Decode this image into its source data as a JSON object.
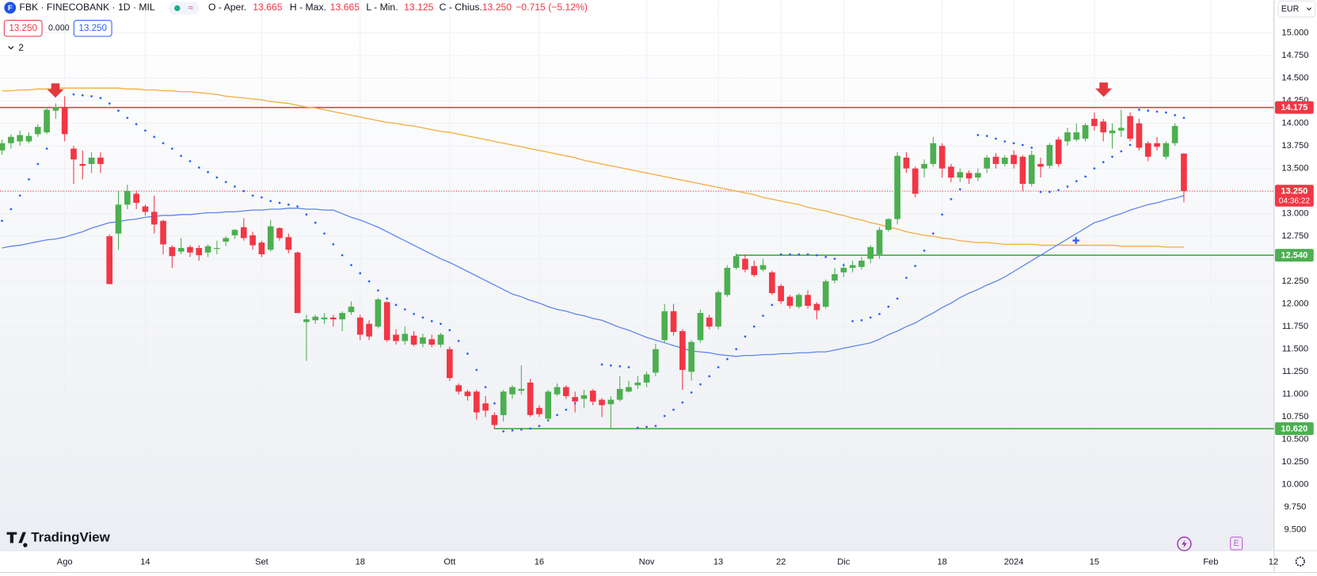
{
  "header": {
    "symbol": "FBK · FINECOBANK · 1D · MIL",
    "o_label": "O - Aper.",
    "o": "13.665",
    "h_label": "H - Max.",
    "h": "13.665",
    "l_label": "L - Min.",
    "l": "13.125",
    "c_label": "C - Chius.",
    "c": "13.250",
    "change": "−0.715 (−5.12%)",
    "bid": "13.250",
    "spread": "0.000",
    "ask": "13.250",
    "indicators": "2",
    "currency": "EUR",
    "brand": "TradingView"
  },
  "chart_data": {
    "type": "candlestick",
    "up_color": "#4caf50",
    "down_color": "#f23645",
    "grid": true,
    "ylim": [
      9.27,
      15.363
    ],
    "yticks": [
      {
        "value": 9.5,
        "label": "9.500"
      },
      {
        "value": 9.75,
        "label": "9.750"
      },
      {
        "value": 10,
        "label": "10.000"
      },
      {
        "value": 10.25,
        "label": "10.250"
      },
      {
        "value": 10.5,
        "label": "10.500"
      },
      {
        "value": 10.75,
        "label": "10.750"
      },
      {
        "value": 11,
        "label": "11.000"
      },
      {
        "value": 11.25,
        "label": "11.250"
      },
      {
        "value": 11.5,
        "label": "11.500"
      },
      {
        "value": 11.75,
        "label": "11.750"
      },
      {
        "value": 12,
        "label": "12.000"
      },
      {
        "value": 12.25,
        "label": "12.250"
      },
      {
        "value": 12.5,
        "label": "12.500"
      },
      {
        "value": 12.75,
        "label": "12.750"
      },
      {
        "value": 13,
        "label": "13.000"
      },
      {
        "value": 13.25,
        "label": "13.250"
      },
      {
        "value": 13.5,
        "label": "13.500"
      },
      {
        "value": 13.75,
        "label": "13.750"
      },
      {
        "value": 14,
        "label": "14.000"
      },
      {
        "value": 14.25,
        "label": "14.250"
      },
      {
        "value": 14.5,
        "label": "14.500"
      },
      {
        "value": 14.75,
        "label": "14.750"
      },
      {
        "value": 15,
        "label": "15.000"
      }
    ],
    "categories": [
      null,
      null,
      null,
      null,
      null,
      null,
      null,
      "Ago",
      null,
      null,
      null,
      null,
      null,
      null,
      null,
      null,
      "14",
      null,
      null,
      null,
      null,
      null,
      null,
      null,
      null,
      null,
      null,
      null,
      null,
      "Set",
      null,
      null,
      null,
      null,
      null,
      null,
      null,
      null,
      null,
      null,
      "18",
      null,
      null,
      null,
      null,
      null,
      null,
      null,
      null,
      null,
      "Ott",
      null,
      null,
      null,
      null,
      null,
      null,
      null,
      null,
      null,
      "16",
      null,
      null,
      null,
      null,
      null,
      null,
      null,
      null,
      null,
      null,
      null,
      "Nov",
      null,
      null,
      null,
      null,
      null,
      null,
      null,
      "13",
      null,
      null,
      null,
      null,
      null,
      null,
      "22",
      null,
      null,
      null,
      null,
      null,
      null,
      "Dic",
      null,
      null,
      null,
      null,
      null,
      null,
      null,
      null,
      null,
      null,
      "18",
      null,
      null,
      null,
      null,
      null,
      null,
      null,
      "2024",
      null,
      null,
      null,
      null,
      null,
      null,
      null,
      null,
      "15",
      null,
      null,
      null,
      null,
      null,
      null,
      null,
      null,
      null,
      null,
      null,
      null,
      "Feb",
      null,
      null,
      null,
      null,
      null,
      null,
      "12"
    ],
    "open": [
      13.7,
      13.78,
      13.8,
      13.8,
      13.88,
      13.9,
      14.14,
      14.17,
      13.72,
      13.55,
      13.55,
      13.62,
      12.75,
      12.78,
      13.1,
      13.22,
      13.08,
      13.02,
      12.92,
      12.63,
      12.58,
      12.63,
      12.62,
      12.57,
      12.61,
      12.69,
      12.76,
      12.85,
      12.76,
      12.68,
      12.6,
      12.84,
      12.74,
      12.57,
      11.8,
      11.82,
      11.83,
      11.85,
      11.83,
      11.91,
      11.85,
      11.78,
      11.75,
      12.02,
      11.66,
      11.59,
      11.65,
      11.56,
      11.61,
      11.55,
      11.5,
      11.1,
      11.03,
      11.03,
      10.9,
      10.77,
      10.77,
      11.0,
      11.04,
      11.13,
      10.85,
      10.73,
      11.0,
      11.08,
      10.97,
      10.95,
      11.04,
      10.94,
      10.89,
      10.94,
      11.03,
      11.1,
      11.13,
      11.24,
      11.6,
      11.92,
      11.7,
      11.25,
      11.6,
      11.85,
      11.75,
      12.1,
      12.4,
      12.5,
      12.42,
      12.38,
      12.35,
      12.2,
      12.08,
      11.97,
      12.1,
      12.0,
      11.97,
      12.26,
      12.35,
      12.4,
      12.41,
      12.5,
      12.55,
      12.82,
      12.94,
      13.62,
      13.5,
      13.5,
      13.55,
      13.75,
      13.52,
      13.4,
      13.45,
      13.4,
      13.5,
      13.63,
      13.55,
      13.65,
      13.63,
      13.33,
      13.55,
      13.53,
      13.82,
      13.8,
      13.82,
      13.83,
      14.05,
      14.02,
      13.89,
      13.92,
      14.08,
      14.0,
      13.78,
      13.78,
      13.63,
      13.78,
      13.665,
      null,
      null,
      null,
      null,
      null,
      null,
      null,
      null,
      null,
      null
    ],
    "high": [
      13.82,
      13.88,
      13.92,
      13.9,
      13.99,
      14.18,
      14.22,
      14.3,
      13.75,
      13.7,
      13.68,
      13.68,
      12.77,
      13.25,
      13.32,
      13.25,
      13.1,
      13.2,
      12.93,
      12.65,
      12.73,
      12.65,
      12.65,
      12.66,
      12.7,
      12.75,
      12.83,
      12.95,
      12.8,
      12.7,
      12.93,
      12.85,
      12.78,
      12.58,
      11.88,
      11.88,
      11.9,
      11.88,
      11.92,
      12.03,
      11.88,
      11.82,
      12.07,
      12.03,
      11.72,
      11.75,
      11.7,
      11.67,
      11.66,
      11.68,
      11.53,
      11.12,
      11.05,
      11.05,
      10.98,
      10.8,
      11.05,
      11.1,
      11.32,
      11.17,
      10.88,
      11.05,
      11.12,
      11.1,
      11.03,
      11.05,
      11.06,
      10.96,
      10.98,
      11.2,
      11.15,
      11.2,
      11.25,
      11.56,
      12.0,
      12.0,
      11.72,
      11.6,
      11.94,
      11.88,
      12.15,
      12.43,
      12.56,
      12.55,
      12.48,
      12.5,
      12.37,
      12.22,
      12.1,
      12.12,
      12.15,
      12.02,
      12.27,
      12.4,
      12.45,
      12.48,
      12.52,
      12.65,
      12.85,
      12.95,
      13.68,
      13.68,
      13.52,
      13.6,
      13.85,
      13.78,
      13.55,
      13.5,
      13.48,
      13.5,
      13.65,
      13.67,
      13.65,
      13.7,
      13.65,
      13.7,
      13.62,
      13.78,
      13.85,
      13.95,
      14.0,
      14.0,
      14.12,
      14.05,
      14.0,
      14.15,
      14.12,
      14.05,
      13.8,
      13.85,
      13.8,
      14.0,
      13.665,
      null,
      null,
      null,
      null,
      null,
      null,
      null,
      null,
      null,
      null
    ],
    "low": [
      13.65,
      13.72,
      13.75,
      13.78,
      13.85,
      13.88,
      14.05,
      13.8,
      13.33,
      13.38,
      13.45,
      13.45,
      12.22,
      12.6,
      13.05,
      13.05,
      12.98,
      12.78,
      12.55,
      12.4,
      12.55,
      12.52,
      12.48,
      12.52,
      12.55,
      12.64,
      12.72,
      12.7,
      12.6,
      12.52,
      12.58,
      12.7,
      12.56,
      11.9,
      11.37,
      11.78,
      11.78,
      11.75,
      11.7,
      11.88,
      11.6,
      11.6,
      11.73,
      11.58,
      11.55,
      11.55,
      11.53,
      11.52,
      11.52,
      11.52,
      11.15,
      11.0,
      10.93,
      10.72,
      10.75,
      10.62,
      10.7,
      10.95,
      11.0,
      10.75,
      10.75,
      10.7,
      10.98,
      10.95,
      10.8,
      10.85,
      10.88,
      10.75,
      10.63,
      10.92,
      11.02,
      11.06,
      11.08,
      11.2,
      11.57,
      11.65,
      11.05,
      11.15,
      11.57,
      11.72,
      11.72,
      12.08,
      12.38,
      12.35,
      12.3,
      12.36,
      12.1,
      12.0,
      11.95,
      11.95,
      11.95,
      11.83,
      11.95,
      12.23,
      12.3,
      12.35,
      12.38,
      12.45,
      12.5,
      12.8,
      12.88,
      13.45,
      13.18,
      13.4,
      13.52,
      13.4,
      13.35,
      13.35,
      13.33,
      13.36,
      13.45,
      13.5,
      13.52,
      13.5,
      13.25,
      13.3,
      13.4,
      13.5,
      13.52,
      13.75,
      13.8,
      13.8,
      13.92,
      13.8,
      13.72,
      13.85,
      13.8,
      13.7,
      13.58,
      13.7,
      13.6,
      13.75,
      13.125,
      null,
      null,
      null,
      null,
      null,
      null,
      null,
      null,
      null,
      null
    ],
    "close": [
      13.78,
      13.85,
      13.87,
      13.86,
      13.96,
      14.15,
      14.18,
      13.88,
      13.6,
      13.53,
      13.62,
      13.55,
      12.22,
      13.1,
      13.25,
      13.12,
      13.02,
      12.88,
      12.66,
      12.53,
      12.62,
      12.57,
      12.54,
      12.64,
      12.62,
      12.73,
      12.82,
      12.73,
      12.65,
      12.55,
      12.86,
      12.73,
      12.6,
      11.9,
      11.83,
      11.86,
      11.85,
      11.83,
      11.9,
      11.97,
      11.66,
      11.64,
      12.05,
      11.6,
      11.59,
      11.67,
      11.55,
      11.63,
      11.55,
      11.66,
      11.18,
      11.03,
      10.98,
      10.8,
      10.82,
      10.66,
      11.03,
      11.08,
      11.06,
      10.77,
      10.78,
      11.03,
      11.08,
      10.98,
      10.92,
      10.99,
      10.92,
      10.88,
      10.94,
      11.06,
      11.08,
      11.13,
      11.22,
      11.5,
      11.92,
      11.69,
      11.27,
      11.58,
      11.9,
      11.75,
      12.13,
      12.4,
      12.53,
      12.38,
      12.32,
      12.43,
      12.12,
      12.03,
      11.98,
      12.1,
      11.98,
      11.93,
      12.25,
      12.33,
      12.4,
      12.43,
      12.48,
      12.63,
      12.82,
      12.94,
      13.64,
      13.5,
      13.22,
      13.55,
      13.78,
      13.5,
      13.4,
      13.46,
      13.39,
      13.45,
      13.62,
      13.55,
      13.62,
      13.55,
      13.33,
      13.65,
      13.52,
      13.76,
      13.55,
      13.9,
      13.9,
      13.98,
      13.97,
      13.9,
      13.92,
      13.95,
      13.83,
      13.73,
      13.63,
      13.74,
      13.78,
      13.97,
      13.25,
      null,
      null,
      null,
      null,
      null,
      null,
      null,
      null,
      null,
      null
    ],
    "lines": [
      {
        "color": "#f7a93b",
        "values": [
          14.36,
          14.36,
          14.37,
          14.37,
          14.38,
          14.38,
          14.39,
          14.39,
          14.39,
          14.39,
          14.39,
          14.39,
          14.39,
          14.39,
          14.38,
          14.38,
          14.37,
          14.37,
          14.36,
          14.36,
          14.35,
          14.35,
          14.34,
          14.33,
          14.32,
          14.3,
          14.29,
          14.28,
          14.27,
          14.26,
          14.24,
          14.23,
          14.22,
          14.2,
          14.18,
          14.17,
          14.15,
          14.13,
          14.11,
          14.09,
          14.07,
          14.05,
          14.03,
          14.01,
          14.0,
          13.98,
          13.97,
          13.95,
          13.93,
          13.91,
          13.9,
          13.88,
          13.86,
          13.84,
          13.82,
          13.8,
          13.78,
          13.76,
          13.74,
          13.72,
          13.7,
          13.68,
          13.66,
          13.64,
          13.62,
          13.59,
          13.57,
          13.55,
          13.53,
          13.51,
          13.49,
          13.47,
          13.45,
          13.43,
          13.41,
          13.39,
          13.37,
          13.35,
          13.33,
          13.31,
          13.29,
          13.27,
          13.25,
          13.23,
          13.21,
          13.18,
          13.16,
          13.14,
          13.12,
          13.1,
          13.07,
          13.05,
          13.03,
          13.0,
          12.98,
          12.95,
          12.93,
          12.9,
          12.88,
          12.85,
          12.83,
          12.8,
          12.78,
          12.76,
          12.75,
          12.73,
          12.72,
          12.7,
          12.69,
          12.68,
          12.68,
          12.67,
          12.66,
          12.66,
          12.66,
          12.66,
          12.65,
          12.65,
          12.65,
          12.65,
          12.65,
          12.65,
          12.65,
          12.65,
          12.65,
          12.64,
          12.64,
          12.64,
          12.64,
          12.64,
          12.63,
          12.63,
          12.63,
          null,
          null,
          null,
          null,
          null,
          null,
          null,
          null,
          null,
          null
        ]
      },
      {
        "color": "#5b84ee",
        "values": [
          12.62,
          12.64,
          12.65,
          12.67,
          12.69,
          12.71,
          12.72,
          12.74,
          12.77,
          12.8,
          12.84,
          12.87,
          12.9,
          12.91,
          12.93,
          12.94,
          12.96,
          12.97,
          12.98,
          12.98,
          12.99,
          12.99,
          13.0,
          13.01,
          13.01,
          13.02,
          13.02,
          13.03,
          13.04,
          13.04,
          13.05,
          13.05,
          13.06,
          13.06,
          13.05,
          13.05,
          13.04,
          13.04,
          13.0,
          12.96,
          12.93,
          12.89,
          12.85,
          12.8,
          12.75,
          12.7,
          12.65,
          12.6,
          12.55,
          12.5,
          12.46,
          12.41,
          12.36,
          12.31,
          12.26,
          12.21,
          12.16,
          12.11,
          12.08,
          12.04,
          12.01,
          11.97,
          11.94,
          11.92,
          11.89,
          11.87,
          11.84,
          11.82,
          11.78,
          11.74,
          11.71,
          11.67,
          11.63,
          11.6,
          11.57,
          11.54,
          11.51,
          11.48,
          11.47,
          11.46,
          11.44,
          11.43,
          11.42,
          11.43,
          11.43,
          11.44,
          11.44,
          11.45,
          11.45,
          11.46,
          11.46,
          11.47,
          11.47,
          11.49,
          11.51,
          11.53,
          11.55,
          11.57,
          11.61,
          11.66,
          11.7,
          11.75,
          11.79,
          11.85,
          11.9,
          11.96,
          12.01,
          12.07,
          12.12,
          12.16,
          12.21,
          12.25,
          12.3,
          12.36,
          12.42,
          12.48,
          12.54,
          12.6,
          12.66,
          12.72,
          12.78,
          12.84,
          12.9,
          12.93,
          12.97,
          13.0,
          13.04,
          13.07,
          13.1,
          13.12,
          13.15,
          13.17,
          13.2,
          null,
          null,
          null,
          null,
          null,
          null,
          null,
          null,
          null,
          null
        ]
      }
    ],
    "sar": {
      "color": "#2962ff",
      "values": [
        12.92,
        13.05,
        13.2,
        13.38,
        13.55,
        13.72,
        null,
        null,
        14.32,
        14.31,
        14.3,
        14.28,
        14.22,
        14.14,
        14.06,
        13.99,
        13.92,
        13.85,
        13.78,
        13.72,
        13.64,
        13.58,
        13.51,
        13.46,
        13.4,
        13.35,
        13.3,
        13.25,
        13.2,
        13.18,
        13.14,
        13.12,
        13.1,
        13.08,
        12.99,
        12.9,
        12.78,
        12.66,
        12.54,
        12.43,
        12.34,
        12.25,
        12.15,
        12.06,
        11.99,
        11.94,
        11.89,
        11.85,
        11.81,
        11.78,
        11.71,
        11.59,
        11.45,
        11.27,
        11.08,
        10.9,
        10.59,
        10.6,
        10.61,
        10.62,
        10.65,
        10.71,
        10.77,
        10.83,
        10.9,
        null,
        null,
        11.33,
        11.32,
        11.31,
        11.3,
        10.63,
        10.64,
        10.65,
        10.76,
        10.83,
        10.91,
        11.02,
        11.11,
        11.2,
        11.3,
        11.39,
        11.5,
        11.64,
        11.75,
        11.87,
        11.99,
        12.55,
        12.55,
        12.55,
        12.55,
        12.54,
        12.52,
        12.5,
        12.43,
        11.81,
        11.82,
        11.85,
        11.89,
        11.97,
        12.06,
        12.29,
        12.42,
        12.59,
        12.78,
        12.99,
        13.16,
        13.27,
        null,
        13.87,
        13.86,
        13.83,
        13.8,
        13.78,
        13.76,
        13.73,
        13.24,
        13.24,
        13.26,
        13.3,
        13.36,
        13.41,
        13.5,
        13.57,
        13.63,
        13.69,
        13.76,
        14.15,
        14.14,
        14.13,
        14.12,
        14.09,
        14.06,
        null,
        null,
        null,
        null,
        null,
        null,
        null,
        null,
        null,
        null
      ]
    },
    "levels": [
      {
        "value": 14.175,
        "label": "14.175",
        "color": "#f23645"
      },
      {
        "value": 12.54,
        "label": "12.540",
        "color": "#4caf50"
      },
      {
        "value": 10.62,
        "label": "10.620",
        "color": "#4caf50"
      }
    ],
    "current": {
      "value": 13.25,
      "label": "13.250",
      "countdown": "04:36:22",
      "color": "#f23645"
    }
  }
}
